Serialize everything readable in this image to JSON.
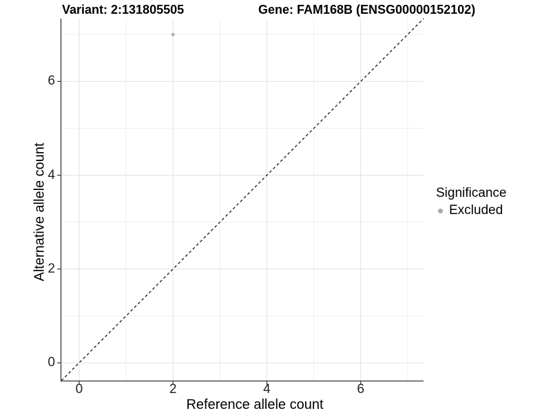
{
  "figure": {
    "background": "#ffffff"
  },
  "chart_data": {
    "type": "scatter",
    "title_left": "Variant: 2:131805505",
    "title_right": "Gene: FAM168B (ENSG00000152102)",
    "xlabel": "Reference allele count",
    "ylabel": "Alternative allele count",
    "xlim": [
      -0.38,
      7.34
    ],
    "ylim": [
      -0.38,
      7.34
    ],
    "x_ticks": [
      0,
      2,
      4,
      6
    ],
    "y_ticks": [
      0,
      2,
      4,
      6
    ],
    "x_minor_ticks": [
      1,
      3,
      5,
      7
    ],
    "y_minor_ticks": [
      1,
      3,
      5,
      7
    ],
    "grid": "major+minor",
    "identity_line": {
      "style": "dashed",
      "color": "#000000",
      "slope": 1,
      "intercept": 0
    },
    "series": [
      {
        "name": "Excluded",
        "color": "#b3b3b3",
        "marker": "circle",
        "points": [
          [
            2,
            7
          ]
        ]
      }
    ],
    "legend": {
      "title": "Significance",
      "position": "right",
      "items": [
        {
          "label": "Excluded",
          "color": "#a9a9a9",
          "marker": "circle"
        }
      ]
    },
    "colors": {
      "grid_major": "#e3e3e3",
      "grid_minor": "#efefef",
      "axis_line": "#333333",
      "tick_text": "#222222",
      "title_text": "#000000"
    }
  }
}
